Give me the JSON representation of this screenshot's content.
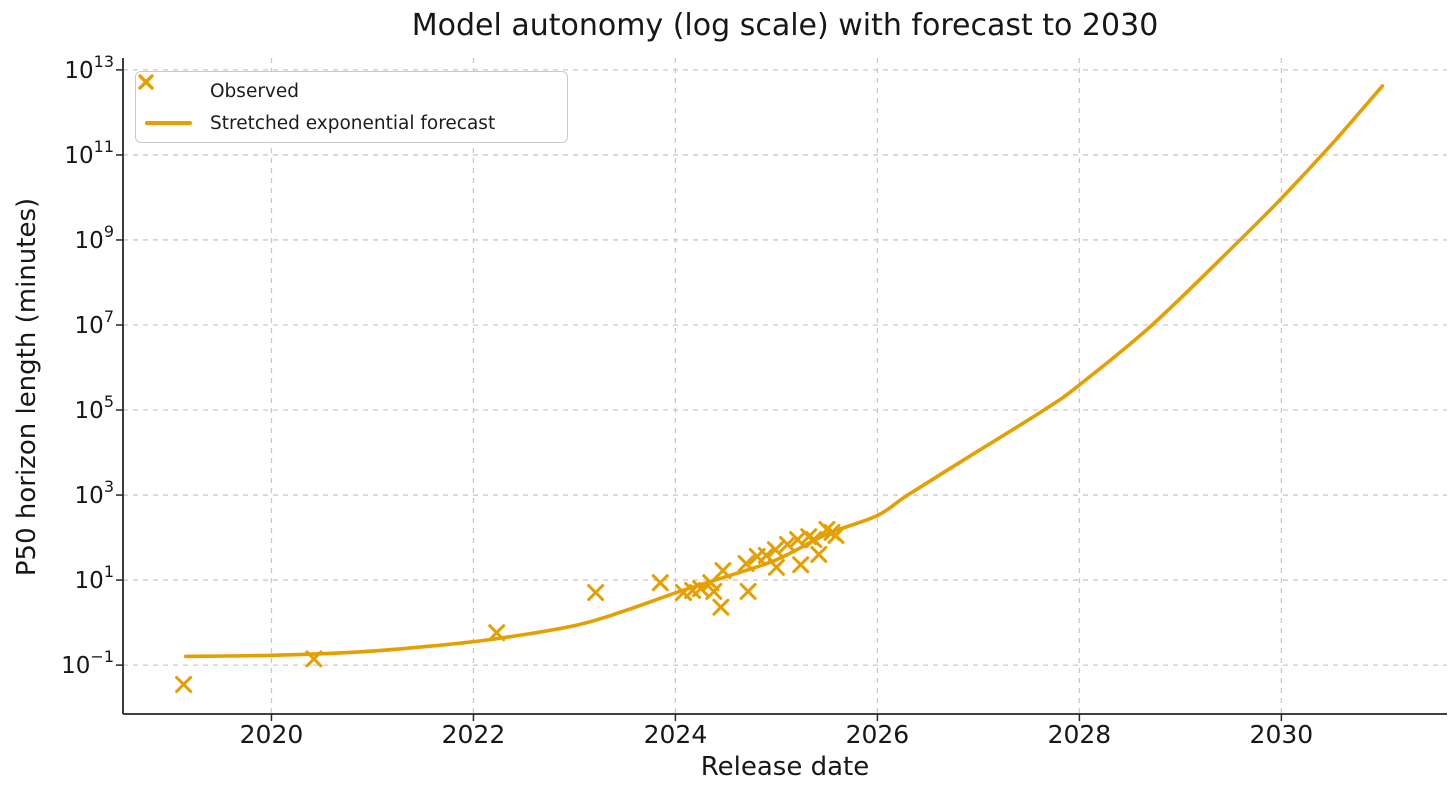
{
  "figure": {
    "background": "#ffffff"
  },
  "chart_data": {
    "type": "scatter",
    "title": "Model autonomy (log scale) with forecast to 2030",
    "xlabel": "Release date",
    "ylabel": "P50 horizon length (minutes)",
    "accent_color": "#E69F00",
    "grid": "dashed-both-axes",
    "legend_position": "upper left",
    "x_axis": {
      "min": 2018.53,
      "max": 2031.64,
      "tick_values": [
        2020,
        2022,
        2024,
        2026,
        2028,
        2030
      ],
      "tick_labels": [
        "2020",
        "2022",
        "2024",
        "2026",
        "2028",
        "2030"
      ]
    },
    "y_axis": {
      "scale": "log10",
      "unit": "minutes",
      "min_exponent": -2.15,
      "max_exponent": 13.28,
      "tick_exponents": [
        -1,
        1,
        3,
        5,
        7,
        9,
        11,
        13
      ],
      "tick_base": "10",
      "tick_exponent_labels": [
        "−1",
        "1",
        "3",
        "5",
        "7",
        "9",
        "11",
        "13"
      ]
    },
    "series": [
      {
        "name": "Observed",
        "kind": "scatter",
        "marker": "x",
        "color": "#E69F00",
        "points": [
          [
            2019.13,
            0.035
          ],
          [
            2020.42,
            0.14
          ],
          [
            2022.23,
            0.58
          ],
          [
            2023.21,
            5.1
          ],
          [
            2023.85,
            8.7
          ],
          [
            2024.08,
            5.1
          ],
          [
            2024.17,
            5.7
          ],
          [
            2024.25,
            6.3
          ],
          [
            2024.35,
            8.7
          ],
          [
            2024.38,
            5.4
          ],
          [
            2024.45,
            2.3
          ],
          [
            2024.47,
            16.7
          ],
          [
            2024.7,
            24.5
          ],
          [
            2024.72,
            5.4
          ],
          [
            2024.81,
            36
          ],
          [
            2024.9,
            38
          ],
          [
            2024.99,
            52
          ],
          [
            2025.0,
            20
          ],
          [
            2025.11,
            69
          ],
          [
            2025.21,
            90
          ],
          [
            2025.24,
            23
          ],
          [
            2025.32,
            105
          ],
          [
            2025.37,
            90
          ],
          [
            2025.42,
            40
          ],
          [
            2025.5,
            155
          ],
          [
            2025.55,
            132
          ],
          [
            2025.59,
            112
          ]
        ]
      },
      {
        "name": "Stretched exponential forecast",
        "kind": "line",
        "color": "#E69F00",
        "points": [
          [
            2019.15,
            0.16
          ],
          [
            2020.0,
            0.17
          ],
          [
            2020.8,
            0.2
          ],
          [
            2021.5,
            0.27
          ],
          [
            2022.2,
            0.41
          ],
          [
            2023.0,
            0.85
          ],
          [
            2023.5,
            1.9
          ],
          [
            2024.0,
            5.0
          ],
          [
            2024.5,
            12
          ],
          [
            2025.0,
            30
          ],
          [
            2025.5,
            120
          ],
          [
            2026.0,
            330
          ],
          [
            2026.3,
            1000
          ],
          [
            2027.0,
            11000
          ],
          [
            2027.65,
            100000
          ],
          [
            2028.0,
            390000
          ],
          [
            2028.72,
            10000000
          ],
          [
            2029.59,
            1000000000
          ],
          [
            2030.0,
            9500000000
          ],
          [
            2030.5,
            180000000000
          ],
          [
            2031.0,
            4200000000000
          ]
        ]
      }
    ]
  }
}
